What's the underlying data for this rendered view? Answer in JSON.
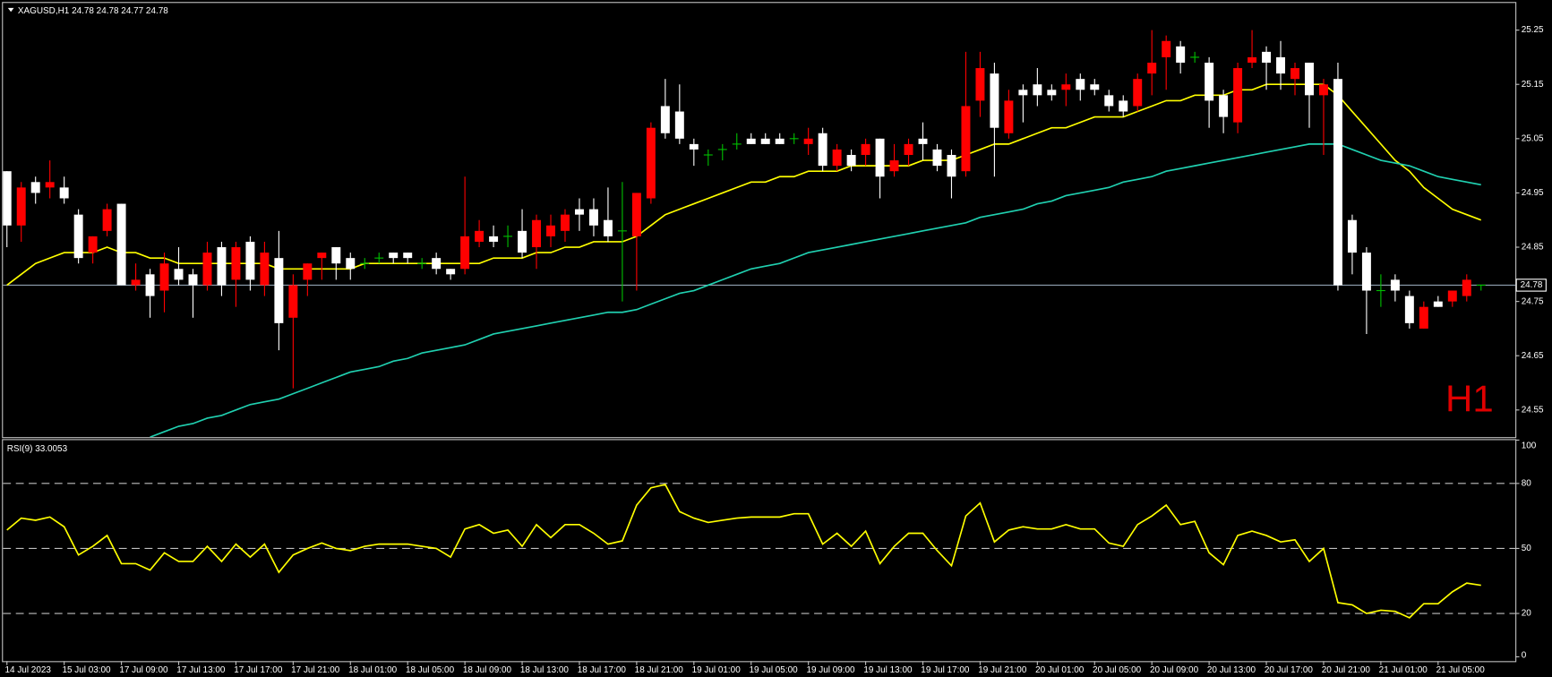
{
  "chart_data": [
    {
      "type": "candlestick",
      "title": "XAGUSD,H1  24.78 24.78 24.77 24.78",
      "label": "H1",
      "categories": [
        "14 Jul 2023",
        null,
        null,
        null,
        "15 Jul 03:00",
        null,
        null,
        null,
        "17 Jul 09:00",
        null,
        null,
        null,
        "17 Jul 13:00",
        null,
        null,
        null,
        "17 Jul 17:00",
        null,
        null,
        null,
        "17 Jul 21:00",
        null,
        null,
        null,
        "18 Jul 01:00",
        null,
        null,
        null,
        "18 Jul 05:00",
        null,
        null,
        null,
        "18 Jul 09:00",
        null,
        null,
        null,
        "18 Jul 13:00",
        null,
        null,
        null,
        "18 Jul 17:00",
        null,
        null,
        null,
        "18 Jul 21:00",
        null,
        null,
        null,
        "19 Jul 01:00",
        null,
        null,
        null,
        "19 Jul 05:00",
        null,
        null,
        null,
        "19 Jul 09:00",
        null,
        null,
        null,
        "19 Jul 13:00",
        null,
        null,
        null,
        "19 Jul 17:00",
        null,
        null,
        null,
        "19 Jul 21:00",
        null,
        null,
        null,
        "20 Jul 01:00",
        null,
        null,
        null,
        "20 Jul 05:00",
        null,
        null,
        null,
        "20 Jul 09:00",
        null,
        null,
        null,
        "20 Jul 13:00",
        null,
        null,
        null,
        "20 Jul 17:00",
        null,
        null,
        null,
        "20 Jul 21:00",
        null,
        null,
        null,
        "21 Jul 01:00",
        null,
        null,
        null,
        "21 Jul 05:00",
        null,
        null,
        null
      ],
      "ohlc": [
        [
          24.99,
          24.99,
          24.85,
          24.89
        ],
        [
          24.89,
          24.97,
          24.86,
          24.96
        ],
        [
          24.97,
          24.98,
          24.93,
          24.95
        ],
        [
          24.96,
          25.01,
          24.94,
          24.97
        ],
        [
          24.96,
          24.98,
          24.93,
          24.94
        ],
        [
          24.91,
          24.92,
          24.82,
          24.83
        ],
        [
          24.84,
          24.87,
          24.82,
          24.87
        ],
        [
          24.88,
          24.93,
          24.87,
          24.92
        ],
        [
          24.93,
          24.93,
          24.78,
          24.78
        ],
        [
          24.78,
          24.82,
          24.77,
          24.79
        ],
        [
          24.8,
          24.81,
          24.72,
          24.76
        ],
        [
          24.77,
          24.84,
          24.73,
          24.82
        ],
        [
          24.81,
          24.85,
          24.78,
          24.79
        ],
        [
          24.8,
          24.81,
          24.72,
          24.78
        ],
        [
          24.78,
          24.86,
          24.77,
          24.84
        ],
        [
          24.85,
          24.86,
          24.76,
          24.78
        ],
        [
          24.79,
          24.86,
          24.74,
          24.85
        ],
        [
          24.86,
          24.87,
          24.77,
          24.79
        ],
        [
          24.78,
          24.86,
          24.76,
          24.84
        ],
        [
          24.83,
          24.88,
          24.66,
          24.71
        ],
        [
          24.72,
          24.8,
          24.59,
          24.78
        ],
        [
          24.79,
          24.82,
          24.76,
          24.82
        ],
        [
          24.83,
          24.84,
          24.79,
          24.84
        ],
        [
          24.85,
          24.85,
          24.79,
          24.82
        ],
        [
          24.83,
          24.84,
          24.79,
          24.81
        ],
        [
          24.82,
          24.83,
          24.81,
          24.82
        ],
        [
          24.83,
          24.84,
          24.82,
          24.83
        ],
        [
          24.84,
          24.84,
          24.82,
          24.83
        ],
        [
          24.84,
          24.84,
          24.82,
          24.83
        ],
        [
          24.82,
          24.83,
          24.81,
          24.82
        ],
        [
          24.83,
          24.84,
          24.8,
          24.81
        ],
        [
          24.81,
          24.81,
          24.79,
          24.8
        ],
        [
          24.81,
          24.98,
          24.8,
          24.87
        ],
        [
          24.86,
          24.9,
          24.85,
          24.88
        ],
        [
          24.87,
          24.89,
          24.85,
          24.86
        ],
        [
          24.87,
          24.89,
          24.85,
          24.87
        ],
        [
          24.88,
          24.92,
          24.83,
          24.84
        ],
        [
          24.85,
          24.91,
          24.81,
          24.9
        ],
        [
          24.87,
          24.91,
          24.85,
          24.89
        ],
        [
          24.88,
          24.92,
          24.86,
          24.91
        ],
        [
          24.92,
          24.94,
          24.88,
          24.91
        ],
        [
          24.92,
          24.94,
          24.87,
          24.89
        ],
        [
          24.9,
          24.96,
          24.86,
          24.87
        ],
        [
          24.88,
          24.97,
          24.75,
          24.88
        ],
        [
          24.87,
          24.95,
          24.77,
          24.95
        ],
        [
          24.94,
          25.08,
          24.93,
          25.07
        ],
        [
          25.11,
          25.16,
          25.05,
          25.06
        ],
        [
          25.1,
          25.15,
          25.04,
          25.05
        ],
        [
          25.04,
          25.05,
          25.0,
          25.03
        ],
        [
          25.02,
          25.03,
          25.0,
          25.02
        ],
        [
          25.03,
          25.04,
          25.01,
          25.03
        ],
        [
          25.04,
          25.06,
          25.03,
          25.04
        ],
        [
          25.05,
          25.06,
          25.04,
          25.04
        ],
        [
          25.05,
          25.06,
          25.04,
          25.04
        ],
        [
          25.05,
          25.06,
          25.04,
          25.04
        ],
        [
          25.05,
          25.06,
          25.04,
          25.05
        ],
        [
          25.04,
          25.07,
          25.02,
          25.05
        ],
        [
          25.06,
          25.07,
          24.99,
          25.0
        ],
        [
          25.0,
          25.04,
          24.99,
          25.03
        ],
        [
          25.02,
          25.03,
          24.99,
          25.0
        ],
        [
          25.02,
          25.05,
          25.0,
          25.04
        ],
        [
          25.05,
          25.05,
          24.94,
          24.98
        ],
        [
          24.99,
          25.04,
          24.98,
          25.01
        ],
        [
          25.02,
          25.05,
          25.0,
          25.04
        ],
        [
          25.05,
          25.08,
          25.01,
          25.04
        ],
        [
          25.03,
          25.04,
          24.99,
          25.0
        ],
        [
          25.02,
          25.03,
          24.94,
          24.98
        ],
        [
          24.99,
          25.21,
          24.98,
          25.11
        ],
        [
          25.12,
          25.21,
          25.09,
          25.18
        ],
        [
          25.17,
          25.19,
          24.98,
          25.07
        ],
        [
          25.06,
          25.14,
          25.05,
          25.12
        ],
        [
          25.14,
          25.15,
          25.08,
          25.13
        ],
        [
          25.15,
          25.18,
          25.11,
          25.13
        ],
        [
          25.14,
          25.15,
          25.12,
          25.13
        ],
        [
          25.14,
          25.17,
          25.11,
          25.15
        ],
        [
          25.16,
          25.17,
          25.12,
          25.14
        ],
        [
          25.15,
          25.16,
          25.13,
          25.14
        ],
        [
          25.13,
          25.14,
          25.1,
          25.11
        ],
        [
          25.12,
          25.13,
          25.09,
          25.1
        ],
        [
          25.11,
          25.17,
          25.1,
          25.16
        ],
        [
          25.17,
          25.25,
          25.13,
          25.19
        ],
        [
          25.2,
          25.24,
          25.14,
          25.23
        ],
        [
          25.22,
          25.23,
          25.17,
          25.19
        ],
        [
          25.2,
          25.21,
          25.19,
          25.2
        ],
        [
          25.19,
          25.2,
          25.07,
          25.12
        ],
        [
          25.13,
          25.14,
          25.06,
          25.09
        ],
        [
          25.08,
          25.19,
          25.06,
          25.18
        ],
        [
          25.19,
          25.25,
          25.18,
          25.2
        ],
        [
          25.21,
          25.22,
          25.14,
          25.19
        ],
        [
          25.2,
          25.23,
          25.14,
          25.17
        ],
        [
          25.16,
          25.19,
          25.13,
          25.18
        ],
        [
          25.19,
          25.19,
          25.07,
          25.13
        ],
        [
          25.13,
          25.16,
          25.02,
          25.15
        ],
        [
          25.16,
          25.19,
          24.77,
          24.78
        ],
        [
          24.9,
          24.91,
          24.8,
          24.84
        ],
        [
          24.84,
          24.85,
          24.69,
          24.77
        ],
        [
          24.77,
          24.8,
          24.74,
          24.77
        ],
        [
          24.79,
          24.8,
          24.75,
          24.77
        ],
        [
          24.76,
          24.77,
          24.7,
          24.71
        ],
        [
          24.7,
          24.75,
          24.7,
          24.74
        ],
        [
          24.75,
          24.76,
          24.74,
          24.74
        ],
        [
          24.75,
          24.77,
          24.74,
          24.77
        ],
        [
          24.76,
          24.8,
          24.75,
          24.79
        ],
        [
          24.78,
          24.78,
          24.77,
          24.78
        ]
      ],
      "up_color": "#ff0000",
      "down_color": "#ffffff",
      "doji_color": "#00c000",
      "series": [
        {
          "color": "#ffff00",
          "values": [
            24.78,
            24.8,
            24.82,
            24.83,
            24.84,
            24.84,
            24.84,
            24.85,
            24.84,
            24.84,
            24.83,
            24.83,
            24.82,
            24.82,
            24.82,
            24.82,
            24.82,
            24.82,
            24.82,
            24.81,
            24.81,
            24.81,
            24.81,
            24.81,
            24.81,
            24.82,
            24.82,
            24.82,
            24.82,
            24.82,
            24.82,
            24.82,
            24.82,
            24.82,
            24.83,
            24.83,
            24.83,
            24.84,
            24.84,
            24.85,
            24.85,
            24.86,
            24.86,
            24.86,
            24.87,
            24.89,
            24.91,
            24.92,
            24.93,
            24.94,
            24.95,
            24.96,
            24.97,
            24.97,
            24.98,
            24.98,
            24.99,
            24.99,
            24.99,
            25.0,
            25.0,
            25.0,
            25.0,
            25.0,
            25.01,
            25.01,
            25.01,
            25.02,
            25.03,
            25.04,
            25.04,
            25.05,
            25.06,
            25.07,
            25.07,
            25.08,
            25.09,
            25.09,
            25.09,
            25.1,
            25.11,
            25.12,
            25.12,
            25.13,
            25.13,
            25.13,
            25.14,
            25.14,
            25.15,
            25.15,
            25.15,
            25.15,
            25.15,
            25.13,
            25.1,
            25.07,
            25.04,
            25.01,
            24.99,
            24.96,
            24.94,
            24.92,
            24.91,
            24.9
          ]
        },
        {
          "color": "#20d0b0",
          "values": [
            null,
            null,
            null,
            null,
            null,
            null,
            null,
            null,
            null,
            null,
            24.5,
            24.51,
            24.52,
            24.525,
            24.535,
            24.54,
            24.55,
            24.56,
            24.565,
            24.57,
            24.58,
            24.59,
            24.6,
            24.61,
            24.62,
            24.625,
            24.63,
            24.64,
            24.645,
            24.655,
            24.66,
            24.665,
            24.67,
            24.68,
            24.69,
            24.695,
            24.7,
            24.705,
            24.71,
            24.715,
            24.72,
            24.725,
            24.73,
            24.73,
            24.735,
            24.745,
            24.755,
            24.765,
            24.77,
            24.78,
            24.79,
            24.8,
            24.81,
            24.815,
            24.82,
            24.83,
            24.84,
            24.845,
            24.85,
            24.855,
            24.86,
            24.865,
            24.87,
            24.875,
            24.88,
            24.885,
            24.89,
            24.895,
            24.905,
            24.91,
            24.915,
            24.92,
            24.93,
            24.935,
            24.945,
            24.95,
            24.955,
            24.96,
            24.97,
            24.975,
            24.98,
            24.99,
            24.995,
            25.0,
            25.005,
            25.01,
            25.015,
            25.02,
            25.025,
            25.03,
            25.035,
            25.04,
            25.04,
            25.04,
            25.03,
            25.02,
            25.01,
            25.005,
            25.0,
            24.99,
            24.98,
            24.975,
            24.97,
            24.965
          ]
        }
      ],
      "last_price": 24.78,
      "ylim": [
        24.5,
        25.3
      ],
      "yticks": [
        24.55,
        24.65,
        24.75,
        24.85,
        24.95,
        25.05,
        25.15,
        25.25
      ],
      "grid": false
    },
    {
      "type": "line",
      "title": "RSI(9) 33.0053",
      "series": [
        {
          "color": "#ffff00",
          "values": [
            58.5,
            64,
            63,
            64.5,
            60,
            47,
            51,
            56,
            43,
            43,
            40,
            48,
            44,
            44,
            51,
            44,
            52,
            46,
            52,
            39,
            47,
            50,
            52.5,
            50,
            49,
            51,
            52,
            52,
            52,
            51,
            50,
            46,
            59,
            61,
            57,
            58.5,
            51,
            61,
            55,
            61,
            61,
            57,
            52,
            53.5,
            70,
            78,
            79.5,
            67,
            64,
            62,
            63,
            64,
            64.5,
            64.5,
            64.5,
            66,
            66,
            52,
            57,
            51,
            58,
            43,
            51,
            57,
            57,
            49,
            42,
            65,
            71,
            53,
            58.5,
            60,
            59,
            59,
            61,
            59,
            59,
            52.5,
            51,
            61,
            65,
            70,
            61,
            62.5,
            48,
            42.5,
            56,
            58,
            56,
            53,
            54,
            44,
            50,
            25,
            24,
            20,
            21.5,
            21,
            18,
            24.5,
            24.5,
            30,
            34,
            33
          ]
        }
      ],
      "levels": [
        20,
        50,
        80
      ],
      "ylim": [
        -2,
        100
      ],
      "yticks": [
        0,
        20,
        50,
        80,
        100
      ]
    }
  ]
}
